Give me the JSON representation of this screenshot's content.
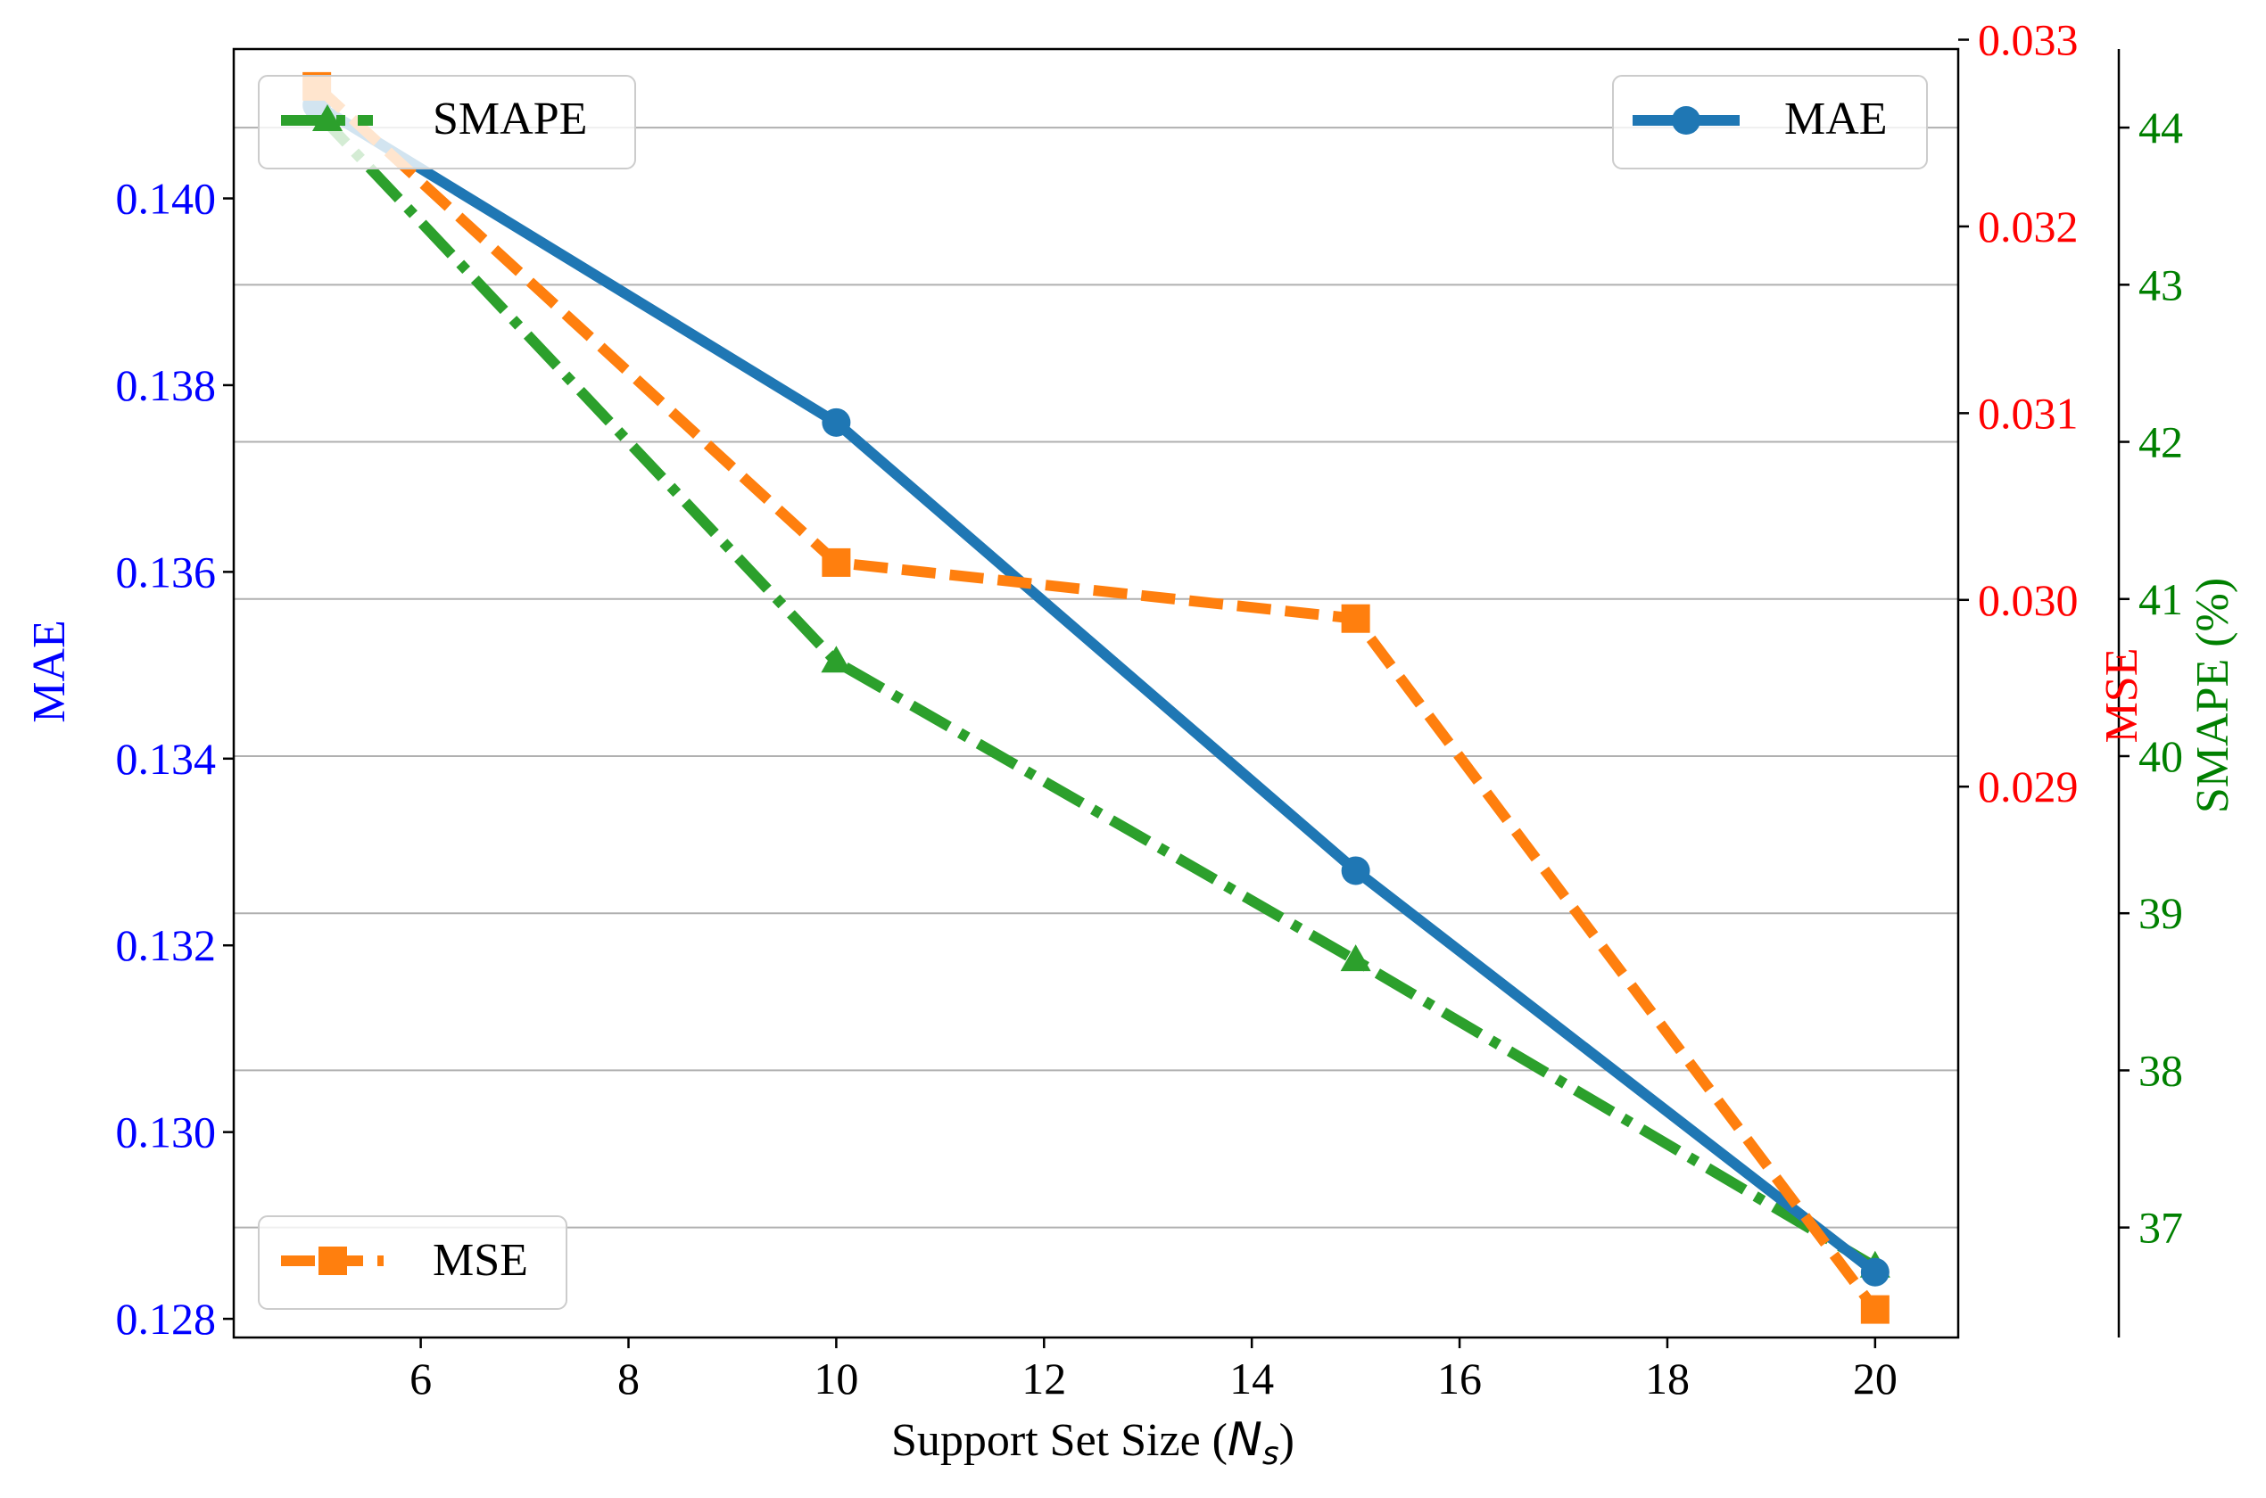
{
  "chart_data": {
    "type": "line",
    "xlabel": "Support Set Size (",
    "xlabel_symbol": "N",
    "xlabel_subscript": "s",
    "xlabel_suffix": ")",
    "x": [
      5,
      10,
      15,
      20
    ],
    "x_ticks": [
      "6",
      "8",
      "10",
      "12",
      "14",
      "16",
      "18",
      "20"
    ],
    "xlim": [
      4.2,
      20.8
    ],
    "grid": "horizontal",
    "axes": {
      "mae": {
        "label": "MAE",
        "color": "#0000ff",
        "side": "left",
        "lim": [
          0.1278,
          0.1416
        ],
        "ticks": [
          "0.128",
          "0.130",
          "0.132",
          "0.134",
          "0.136",
          "0.138",
          "0.140"
        ]
      },
      "mse": {
        "label": "MSE",
        "color": "#ff0000",
        "side": "right",
        "lim": [
          0.02605,
          0.03295
        ],
        "ticks": [
          "0.029",
          "0.030",
          "0.031",
          "0.032",
          "0.033"
        ]
      },
      "smape": {
        "label": "SMAPE (%)",
        "color": "#008000",
        "side": "right-outer",
        "lim": [
          36.3,
          44.5
        ],
        "ticks": [
          "37",
          "38",
          "39",
          "40",
          "41",
          "42",
          "43",
          "44"
        ]
      }
    },
    "series": [
      {
        "name": "MAE",
        "axis": "mae",
        "color": "#1f77b4",
        "dash": "solid",
        "marker": "circle",
        "values": [
          0.141,
          0.1376,
          0.1328,
          0.1285
        ]
      },
      {
        "name": "MSE",
        "axis": "mse",
        "color": "#ff7f0e",
        "dash": "dashed",
        "marker": "square",
        "values": [
          0.03275,
          0.0302,
          0.0299,
          0.0262
        ]
      },
      {
        "name": "SMAPE",
        "axis": "smape",
        "color": "#2ca02c",
        "dash": "dashdot",
        "marker": "triangle",
        "values": [
          44.1,
          40.6,
          38.7,
          36.75
        ]
      }
    ],
    "legends": [
      {
        "series": "SMAPE",
        "position": "top-left"
      },
      {
        "series": "MAE",
        "position": "top-right"
      },
      {
        "series": "MSE",
        "position": "bottom-left"
      }
    ]
  }
}
